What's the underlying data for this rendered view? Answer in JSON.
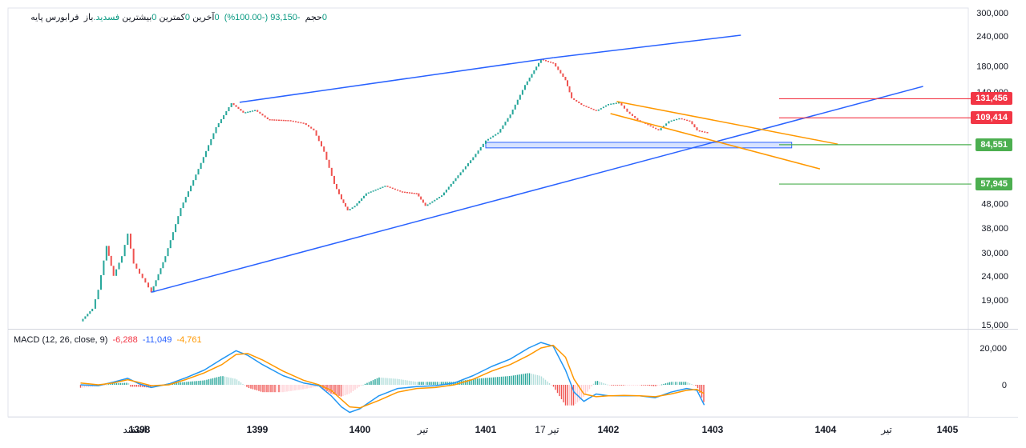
{
  "legend": {
    "symbol_text": "فرابورس پایه",
    "open_label": "باز",
    "open_value": "فسدید.",
    "high_label": "بیشترین",
    "high_value": "0",
    "low_label": "کمترین",
    "low_value": "0",
    "close_label": "آخرین",
    "close_value": "0",
    "change_value": "-93,150 (-100.00%)",
    "volume_label": "حجم",
    "volume_value": "0"
  },
  "macd_legend": {
    "title": "MACD (12, 26, close, 9)",
    "hist_value": "-6,288",
    "macd_value": "-11,049",
    "signal_value": "-4,761"
  },
  "price_labels": [
    {
      "text": "131,456",
      "value": 131456,
      "color": "#f23645"
    },
    {
      "text": "109,414",
      "value": 109414,
      "color": "#f23645"
    },
    {
      "text": "84,551",
      "value": 84551,
      "color": "#4caf50"
    },
    {
      "text": "57,945",
      "value": 57945,
      "color": "#4caf50"
    }
  ],
  "chart_data": [
    {
      "type": "candlestick-renko",
      "title": "",
      "y_scale": "log",
      "y_ticks": [
        "300,000",
        "240,000",
        "180,000",
        "140,000",
        "48,000",
        "38,000",
        "30,000",
        "24,000",
        "19,000",
        "15,000"
      ],
      "y_tick_values": [
        300000,
        240000,
        180000,
        140000,
        48000,
        38000,
        30000,
        24000,
        19000,
        15000
      ],
      "x_ticks": [
        "اسفند",
        "1398",
        "1399",
        "1400",
        "تیر",
        "1401",
        "17 تیر",
        "1402",
        "1403",
        "1404",
        "تیر",
        "1405"
      ],
      "x_tick_times": [
        1397.96,
        1398.0,
        1399.0,
        1400.0,
        1400.5,
        1401.0,
        1401.5,
        1402.0,
        1403.0,
        1404.0,
        1404.5,
        1405.0
      ],
      "colors": {
        "up": "#26a69a",
        "down": "#ef5350"
      },
      "price_path": [
        [
          1397.5,
          15500
        ],
        [
          1397.6,
          17500
        ],
        [
          1397.65,
          21000
        ],
        [
          1397.72,
          32000
        ],
        [
          1397.78,
          24000
        ],
        [
          1397.85,
          29000
        ],
        [
          1397.9,
          36000
        ],
        [
          1397.95,
          27000
        ],
        [
          1398.0,
          24500
        ],
        [
          1398.05,
          22500
        ],
        [
          1398.1,
          20500
        ],
        [
          1398.22,
          29000
        ],
        [
          1398.35,
          46000
        ],
        [
          1398.5,
          67000
        ],
        [
          1398.65,
          100000
        ],
        [
          1398.78,
          126000
        ],
        [
          1398.88,
          115000
        ],
        [
          1398.98,
          118000
        ],
        [
          1399.1,
          108000
        ],
        [
          1399.3,
          107000
        ],
        [
          1399.45,
          104000
        ],
        [
          1399.55,
          97000
        ],
        [
          1399.65,
          79000
        ],
        [
          1399.75,
          58000
        ],
        [
          1399.82,
          50000
        ],
        [
          1399.88,
          45000
        ],
        [
          1399.95,
          47000
        ],
        [
          1400.05,
          53000
        ],
        [
          1400.2,
          57000
        ],
        [
          1400.32,
          54000
        ],
        [
          1400.45,
          53000
        ],
        [
          1400.52,
          47000
        ],
        [
          1400.65,
          52000
        ],
        [
          1400.78,
          63000
        ],
        [
          1400.9,
          75000
        ],
        [
          1401.0,
          88000
        ],
        [
          1401.1,
          95000
        ],
        [
          1401.2,
          113000
        ],
        [
          1401.32,
          150000
        ],
        [
          1401.45,
          192000
        ],
        [
          1401.55,
          185000
        ],
        [
          1401.65,
          157000
        ],
        [
          1401.7,
          132000
        ],
        [
          1401.78,
          124000
        ],
        [
          1401.9,
          117000
        ],
        [
          1402.0,
          125000
        ],
        [
          1402.1,
          127000
        ],
        [
          1402.18,
          116000
        ],
        [
          1402.28,
          107000
        ],
        [
          1402.38,
          102000
        ],
        [
          1402.48,
          97000
        ],
        [
          1402.58,
          106000
        ],
        [
          1402.68,
          109000
        ],
        [
          1402.78,
          106000
        ],
        [
          1402.85,
          97000
        ],
        [
          1402.95,
          95000
        ]
      ],
      "trendlines": [
        {
          "color": "#2962ff",
          "from": [
            1398.85,
            127000
          ],
          "to": [
            1401.55,
            195000
          ]
        },
        {
          "color": "#2962ff",
          "from": [
            1401.55,
            195000
          ],
          "to": [
            1403.25,
            242000
          ]
        },
        {
          "color": "#2962ff",
          "from": [
            1398.1,
            20500
          ],
          "to": [
            1404.8,
            148000
          ]
        },
        {
          "color": "#ff9800",
          "from": [
            1402.08,
            128000
          ],
          "to": [
            1404.1,
            85000
          ]
        },
        {
          "color": "#ff9800",
          "from": [
            1402.02,
            114000
          ],
          "to": [
            1403.95,
            67000
          ]
        }
      ],
      "zone": {
        "from_time": 1401.0,
        "to_time": 1403.7,
        "low": 82000,
        "high": 86500,
        "color": "#2962ff"
      }
    },
    {
      "type": "macd",
      "title": "",
      "y_ticks": [
        "20,000",
        "0"
      ],
      "y_tick_values": [
        20000,
        0
      ],
      "series": [
        {
          "name": "MACD",
          "color": "#2196f3",
          "points": [
            [
              1397.5,
              0
            ],
            [
              1397.65,
              -500
            ],
            [
              1397.78,
              1500
            ],
            [
              1397.9,
              3500
            ],
            [
              1398.0,
              500
            ],
            [
              1398.1,
              -1500
            ],
            [
              1398.25,
              500
            ],
            [
              1398.4,
              4000
            ],
            [
              1398.55,
              8000
            ],
            [
              1398.7,
              14000
            ],
            [
              1398.82,
              18500
            ],
            [
              1398.92,
              16000
            ],
            [
              1399.05,
              11000
            ],
            [
              1399.25,
              5000
            ],
            [
              1399.45,
              1000
            ],
            [
              1399.6,
              -500
            ],
            [
              1399.72,
              -6000
            ],
            [
              1399.82,
              -12000
            ],
            [
              1399.9,
              -15000
            ],
            [
              1400.0,
              -13000
            ],
            [
              1400.15,
              -6000
            ],
            [
              1400.3,
              -2000
            ],
            [
              1400.45,
              -1000
            ],
            [
              1400.6,
              -500
            ],
            [
              1400.75,
              1000
            ],
            [
              1400.9,
              5000
            ],
            [
              1401.05,
              10000
            ],
            [
              1401.2,
              14000
            ],
            [
              1401.35,
              20000
            ],
            [
              1401.45,
              23000
            ],
            [
              1401.55,
              21000
            ],
            [
              1401.65,
              8000
            ],
            [
              1401.72,
              -4000
            ],
            [
              1401.8,
              -9000
            ],
            [
              1401.9,
              -5000
            ],
            [
              1402.0,
              -6000
            ],
            [
              1402.15,
              -6000
            ],
            [
              1402.3,
              -6000
            ],
            [
              1402.45,
              -7000
            ],
            [
              1402.6,
              -4000
            ],
            [
              1402.75,
              -2000
            ],
            [
              1402.85,
              -3000
            ],
            [
              1402.92,
              -11000
            ]
          ]
        },
        {
          "name": "Signal",
          "color": "#ff9800",
          "points": [
            [
              1397.5,
              1000
            ],
            [
              1397.65,
              0
            ],
            [
              1397.78,
              1000
            ],
            [
              1397.9,
              2800
            ],
            [
              1398.0,
              1200
            ],
            [
              1398.1,
              -500
            ],
            [
              1398.25,
              0
            ],
            [
              1398.4,
              3000
            ],
            [
              1398.55,
              6500
            ],
            [
              1398.7,
              11000
            ],
            [
              1398.82,
              16500
            ],
            [
              1398.92,
              17000
            ],
            [
              1399.05,
              13500
            ],
            [
              1399.25,
              7500
            ],
            [
              1399.45,
              2500
            ],
            [
              1399.6,
              0
            ],
            [
              1399.72,
              -3000
            ],
            [
              1399.82,
              -8000
            ],
            [
              1399.9,
              -12000
            ],
            [
              1400.0,
              -12500
            ],
            [
              1400.15,
              -8500
            ],
            [
              1400.3,
              -4000
            ],
            [
              1400.45,
              -2000
            ],
            [
              1400.6,
              -1500
            ],
            [
              1400.75,
              0
            ],
            [
              1400.9,
              3000
            ],
            [
              1401.05,
              7500
            ],
            [
              1401.2,
              11000
            ],
            [
              1401.35,
              16000
            ],
            [
              1401.45,
              20000
            ],
            [
              1401.55,
              21500
            ],
            [
              1401.65,
              15000
            ],
            [
              1401.72,
              3000
            ],
            [
              1401.8,
              -5000
            ],
            [
              1401.9,
              -6500
            ],
            [
              1402.0,
              -6000
            ],
            [
              1402.15,
              -5800
            ],
            [
              1402.3,
              -6000
            ],
            [
              1402.45,
              -6500
            ],
            [
              1402.6,
              -5000
            ],
            [
              1402.75,
              -3000
            ],
            [
              1402.85,
              -2500
            ],
            [
              1402.92,
              -4761
            ]
          ]
        }
      ]
    }
  ]
}
